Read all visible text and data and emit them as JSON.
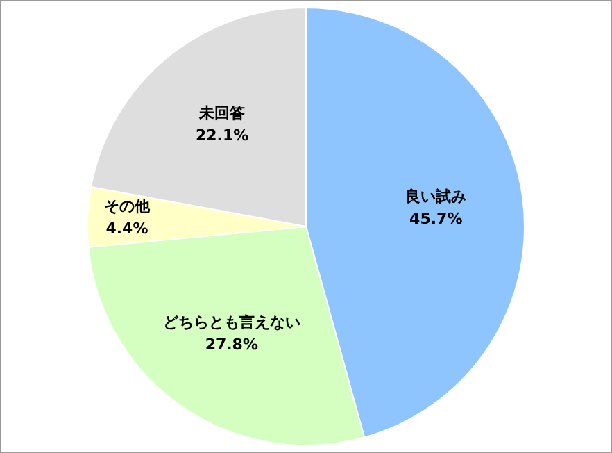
{
  "chart_data": {
    "type": "pie",
    "categories": [
      "良い試み",
      "どちらとも言えない",
      "その他",
      "未回答"
    ],
    "values": [
      45.7,
      27.8,
      4.4,
      22.1
    ],
    "colors": [
      "#8fc5ff",
      "#d5ffc0",
      "#ffffc6",
      "#dedede"
    ],
    "value_labels": [
      "45.7%",
      "27.8%",
      "4.4%",
      "22.1%"
    ],
    "legend": false
  }
}
